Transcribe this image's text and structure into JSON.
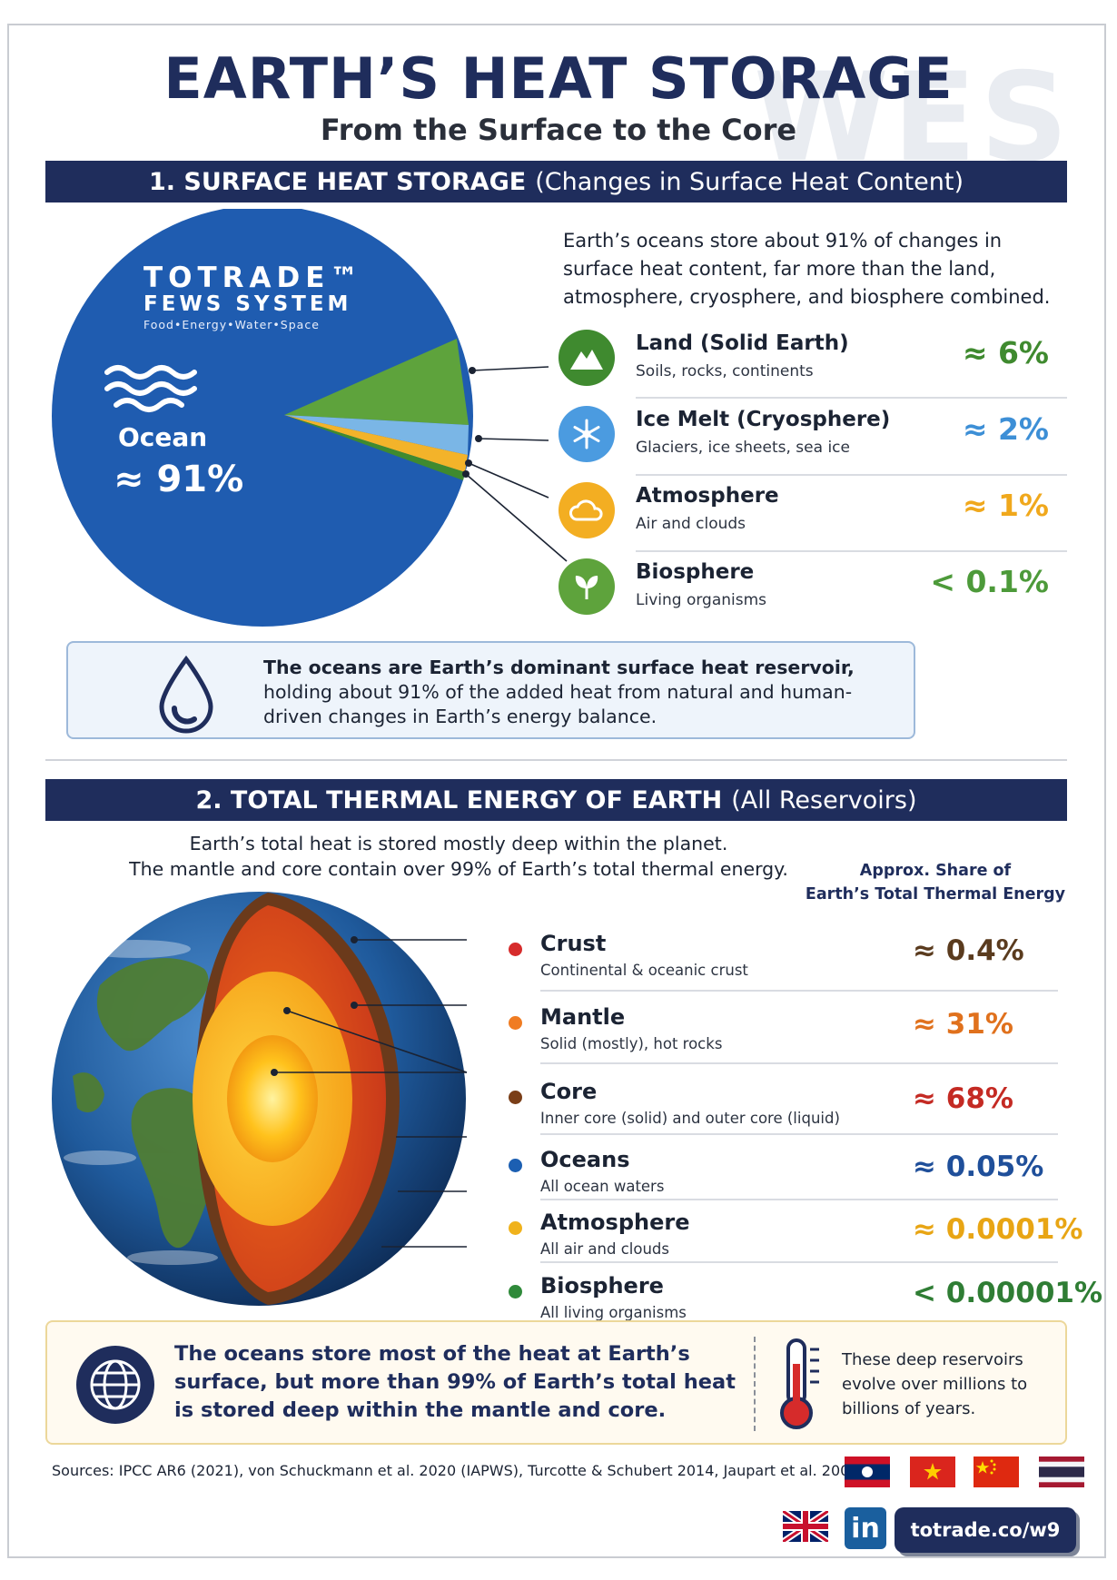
{
  "header": {
    "title": "EARTH’S HEAT STORAGE",
    "subtitle": "From the Surface to the Core",
    "watermark": "WES"
  },
  "section1": {
    "heading": "1. SURFACE HEAT STORAGE",
    "heading_paren": "(Changes in Surface Heat Content)",
    "intro": "Earth’s oceans store about 91% of changes in surface heat content, far more than the land, atmosphere, cryosphere, and biosphere combined.",
    "logo": {
      "brand": "TOTRADE™",
      "system": "FEWS SYSTEM",
      "tagline": "Food•Energy•Water•Space"
    },
    "ocean_label": "Ocean",
    "ocean_value": "≈ 91%",
    "items": [
      {
        "name": "Land (Solid Earth)",
        "desc": "Soils, rocks, continents",
        "pct": "≈ 6%",
        "color": "#3f8a2f",
        "icon": "mountain-icon"
      },
      {
        "name": "Ice Melt (Cryosphere)",
        "desc": "Glaciers, ice sheets, sea ice",
        "pct": "≈ 2%",
        "color": "#3d8fd6",
        "icon": "snowflake-icon"
      },
      {
        "name": "Atmosphere",
        "desc": "Air and clouds",
        "pct": "≈ 1%",
        "color": "#f0a81c",
        "icon": "cloud-icon"
      },
      {
        "name": "Biosphere",
        "desc": "Living organisms",
        "pct": "< 0.1%",
        "color": "#4d9a3a",
        "icon": "leaf-icon"
      }
    ],
    "callout_bold": "The oceans are Earth’s dominant surface heat reservoir,",
    "callout_rest": "holding about 91% of the added heat from natural and human-driven changes in Earth’s energy balance."
  },
  "section2": {
    "heading": "2. TOTAL THERMAL ENERGY OF EARTH",
    "heading_paren": "(All Reservoirs)",
    "intro_line1": "Earth’s total heat is stored mostly deep within the planet.",
    "intro_line2": "The mantle and core contain over 99% of Earth’s total thermal energy.",
    "share_header_line1": "Approx. Share of",
    "share_header_line2": "Earth’s Total Thermal Energy",
    "layers": [
      {
        "name": "Crust",
        "desc": "Continental & oceanic crust",
        "pct": "≈ 0.4%",
        "dot": "#d62b2b",
        "color": "#5a3b1e"
      },
      {
        "name": "Mantle",
        "desc": "Solid (mostly), hot rocks",
        "pct": "≈ 31%",
        "dot": "#f07c22",
        "color": "#e0711d"
      },
      {
        "name": "Core",
        "desc": "Inner core (solid) and outer core (liquid)",
        "pct": "≈ 68%",
        "dot": "#7a3e17",
        "color": "#c42a23"
      },
      {
        "name": "Oceans",
        "desc": "All ocean waters",
        "pct": "≈ 0.05%",
        "dot": "#1c5fb2",
        "color": "#1f4f9a"
      },
      {
        "name": "Atmosphere",
        "desc": "All air and clouds",
        "pct": "≈ 0.0001%",
        "dot": "#f0b21c",
        "color": "#e8a514"
      },
      {
        "name": "Biosphere",
        "desc": "All living organisms",
        "pct": "< 0.00001%",
        "dot": "#2f8a3a",
        "color": "#2f7d34"
      }
    ],
    "callout_main": "The oceans store most of the heat at Earth’s surface, but more than 99% of Earth’s total heat is stored deep within the mantle and core.",
    "callout_side": "These deep reservoirs evolve over millions to billions of years."
  },
  "footer": {
    "sources": "Sources: IPCC AR6 (2021), von Schuckmann et al. 2020 (IAPWS), Turcotte & Schubert 2014, Jaupart et al. 2007",
    "link": "totrade.co/w9",
    "linkedin": "in"
  }
}
